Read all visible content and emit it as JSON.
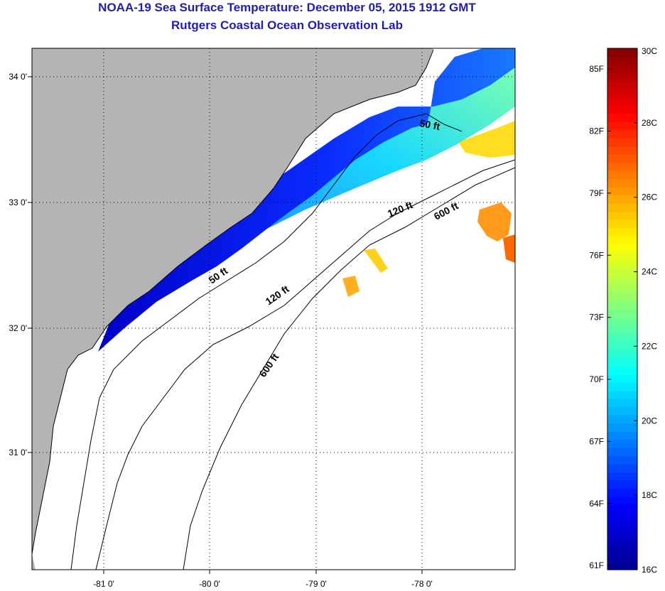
{
  "header": {
    "title": "NOAA-19 Sea Surface Temperature:  December 05, 2015 1912 GMT",
    "subtitle": "Rutgers Coastal Ocean Observation Lab"
  },
  "map": {
    "lat_ticks": [
      "34 0'",
      "33 0'",
      "32 0'",
      "31 0'"
    ],
    "lon_ticks": [
      "-81 0'",
      "-80 0'",
      "-79 0'",
      "-78 0'"
    ],
    "lat_range": [
      30.17,
      34.3
    ],
    "lon_range": [
      -81.68,
      -77.13
    ],
    "contour_labels": [
      "50 ft",
      "120 ft",
      "600 ft",
      "50 ft",
      "120 ft",
      "600 ft"
    ],
    "colors": {
      "land": "#b4b4b4",
      "ocean_no_data": "#ffffff",
      "grid": "#000000"
    }
  },
  "colorbar": {
    "fahrenheit_labels": [
      "85F",
      "82F",
      "79F",
      "76F",
      "73F",
      "70F",
      "67F",
      "64F",
      "61F"
    ],
    "celsius_labels": [
      "30C",
      "28C",
      "26C",
      "24C",
      "22C",
      "20C",
      "18C",
      "16C"
    ],
    "celsius_range": [
      16,
      30
    ],
    "colormap": [
      "#00008f",
      "#0000ff",
      "#0080ff",
      "#00ffff",
      "#80ff80",
      "#ffff00",
      "#ff8000",
      "#ff0000",
      "#800000"
    ]
  }
}
